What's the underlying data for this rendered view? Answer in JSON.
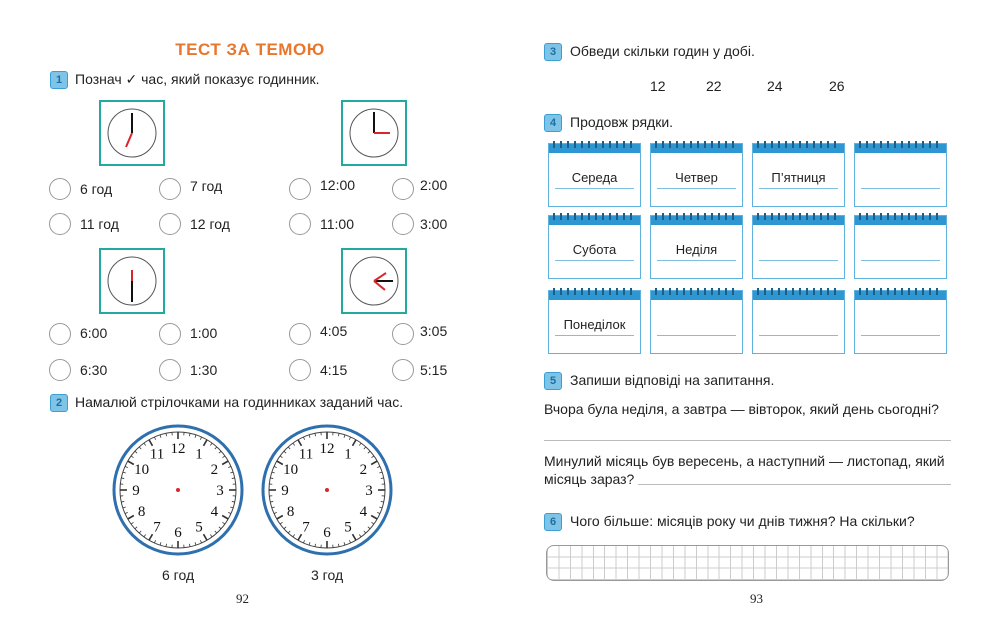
{
  "left": {
    "title": "ТЕСТ ЗА ТЕМОЮ",
    "task1": {
      "num": "1",
      "text": "Познач ✓ час, який показує годинник.",
      "rows": [
        [
          "6 год",
          "7 год",
          "12:00",
          "2:00"
        ],
        [
          "11 год",
          "12 год",
          "11:00",
          "3:00"
        ],
        [
          "6:00",
          "1:00",
          "4:05",
          "3:05"
        ],
        [
          "6:30",
          "1:30",
          "4:15",
          "5:15"
        ]
      ]
    },
    "task2": {
      "num": "2",
      "text": "Намалюй стрілочками на годинниках заданий час.",
      "labels": [
        "6 год",
        "3 год"
      ]
    },
    "page": "92"
  },
  "right": {
    "task3": {
      "num": "3",
      "text": "Обведи скільки годин у добі.",
      "options": [
        "12",
        "22",
        "24",
        "26"
      ]
    },
    "task4": {
      "num": "4",
      "text": "Продовж рядки.",
      "rows": [
        [
          "Середа",
          "Четвер",
          "П’ятниця",
          ""
        ],
        [
          "Субота",
          "Неділя",
          "",
          ""
        ],
        [
          "Понеділок",
          "",
          "",
          ""
        ]
      ]
    },
    "task5": {
      "num": "5",
      "text": "Запиши відповіді на запитання.",
      "q1": "Вчора була неділя, а завтра — вівторок, який день сьогодні?",
      "q2a": "Минулий місяць був вересень, а наступний — листопад, який",
      "q2b": "місяць зараз?"
    },
    "task6": {
      "num": "6",
      "text": "Чого більше: місяців року чи днів тижня? На скільки?"
    },
    "page": "93"
  },
  "clock_digits": [
    "12",
    "1",
    "2",
    "3",
    "4",
    "5",
    "6",
    "7",
    "8",
    "9",
    "10",
    "11"
  ],
  "colors": {
    "title": "#e8762d",
    "teal": "#23a9a0",
    "blue": "#2e6fae",
    "hand": "#d9262c"
  }
}
